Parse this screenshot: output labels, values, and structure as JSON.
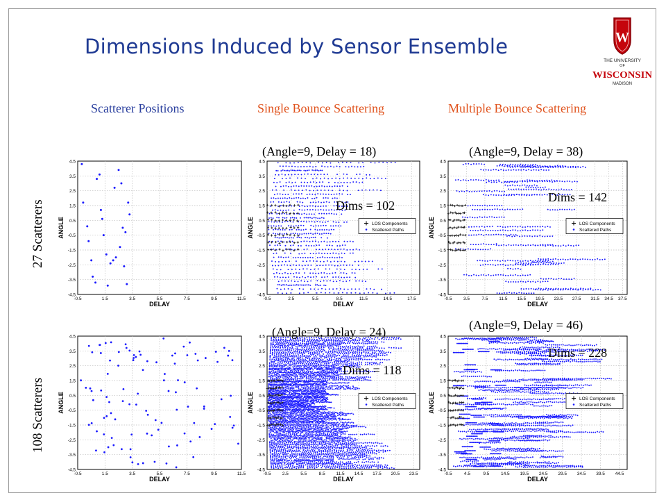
{
  "title": "Dimensions Induced by Sensor Ensemble",
  "logo": {
    "line1": "THE UNIVERSITY",
    "line2": "OF",
    "line3": "WISCONSIN",
    "line4": "MADISON",
    "crest_letter": "W"
  },
  "colors": {
    "title": "#1f3a93",
    "scatterer_header": "#2a3f9e",
    "bounce_header": "#e0521c",
    "points": "#1a1aff",
    "los": "#222222",
    "crest": "#c5050c"
  },
  "columns": {
    "scatterer": "Scatterer Positions",
    "single": "Single Bounce Scattering",
    "multiple": "Multiple Bounce Scattering"
  },
  "rows": {
    "small": "27 Scatterers",
    "large": "108 Scatterers"
  },
  "annotations": {
    "p1": {
      "params": "(Angle=9, Delay = 18)",
      "dims": "Dims = 102"
    },
    "p2": {
      "params": "(Angle=9, Delay = 38)",
      "dims": "Dims = 142"
    },
    "p3": {
      "params": "(Angle=9, Delay = 24)",
      "dims": "Dims = 118"
    },
    "p4": {
      "params": "(Angle=9, Delay = 46)",
      "dims": "Dims = 228"
    }
  },
  "legend": {
    "los": "LOS Components",
    "scattered": "Scattered Paths"
  },
  "chart_data": [
    {
      "id": "scat27",
      "type": "scatter",
      "xlabel": "DELAY",
      "ylabel": "ANGLE",
      "xlim": [
        -0.5,
        11.5
      ],
      "ylim": [
        -4.5,
        4.5
      ],
      "xticks": [
        "-0.5",
        "1.5",
        "3.5",
        "5.5",
        "7.5",
        "9.5",
        "11.5"
      ],
      "yticks": [
        "4.5",
        "3.5",
        "2.5",
        "1.5",
        "0.5",
        "-0.5",
        "-1.5",
        "-2.5",
        "-3.5",
        "-4.5"
      ],
      "grid": true,
      "series": [
        {
          "points": [
            [
              -0.2,
              4.3
            ],
            [
              -0.1,
              1.7
            ],
            [
              0.2,
              0.1
            ],
            [
              0.3,
              -0.9
            ],
            [
              0.5,
              -2.2
            ],
            [
              0.6,
              -3.3
            ],
            [
              0.8,
              -3.7
            ],
            [
              0.9,
              3.3
            ],
            [
              1.1,
              3.6
            ],
            [
              1.2,
              1.2
            ],
            [
              1.3,
              0.6
            ],
            [
              1.4,
              -0.5
            ],
            [
              1.6,
              -1.8
            ],
            [
              1.7,
              -3.9
            ],
            [
              1.9,
              -2.4
            ],
            [
              2.1,
              -2.2
            ],
            [
              2.2,
              2.7
            ],
            [
              2.3,
              -2.0
            ],
            [
              2.5,
              3.9
            ],
            [
              2.6,
              -1.3
            ],
            [
              2.7,
              3.0
            ],
            [
              2.8,
              0.0
            ],
            [
              2.9,
              -2.6
            ],
            [
              3.0,
              -0.3
            ],
            [
              3.1,
              -3.8
            ],
            [
              3.2,
              1.7
            ],
            [
              3.3,
              0.9
            ]
          ]
        }
      ]
    },
    {
      "id": "single27",
      "type": "scatter",
      "xlabel": "DELAY",
      "ylabel": "ANGLE",
      "xlim": [
        -0.5,
        18.5
      ],
      "ylim": [
        -4.5,
        4.5
      ],
      "xticks": [
        "-0.5",
        "2.5",
        "5.5",
        "8.5",
        "11.5",
        "14.5",
        "17.5"
      ],
      "yticks": [
        "4.5",
        "3.5",
        "2.5",
        "1.5",
        "0.5",
        "-0.5",
        "-1.5",
        "-2.5",
        "-3.5",
        "-4.5"
      ],
      "grid": true,
      "legend_position": "right",
      "series": [
        {
          "name": "LOS Components",
          "style": "cross",
          "region": {
            "x": [
              -0.5,
              3.7
            ],
            "y": [
              -1.5,
              1.5
            ]
          }
        },
        {
          "name": "Scattered Paths",
          "style": "dot",
          "shape": "left-bulge",
          "xmax": 18.0
        }
      ]
    },
    {
      "id": "multi27",
      "type": "scatter",
      "xlabel": "DELAY",
      "ylabel": "ANGLE",
      "xlim": [
        -0.5,
        38.5
      ],
      "ylim": [
        -4.5,
        4.5
      ],
      "xticks": [
        "-0.5",
        "3.5",
        "7.5",
        "11.5",
        "15.5",
        "19.5",
        "23.5",
        "27.5",
        "31.5",
        "34.5",
        "37.5"
      ],
      "yticks": [
        "4.5",
        "3.5",
        "2.5",
        "1.5",
        "0.5",
        "-0.5",
        "-1.5",
        "-2.5",
        "-3.5",
        "-4.5"
      ],
      "grid": true,
      "legend_position": "right",
      "series": [
        {
          "name": "LOS Components",
          "style": "cross",
          "region": {
            "x": [
              -0.5,
              3.5
            ],
            "y": [
              -1.5,
              1.5
            ]
          }
        },
        {
          "name": "Scattered Paths",
          "style": "dot",
          "shape": "bands",
          "xmax": 38.0
        }
      ]
    },
    {
      "id": "scat108",
      "type": "scatter",
      "xlabel": "DELAY",
      "ylabel": "ANGLE",
      "xlim": [
        -0.5,
        11.5
      ],
      "ylim": [
        -4.5,
        4.5
      ],
      "xticks": [
        "-0.5",
        "1.5",
        "3.5",
        "5.5",
        "7.5",
        "9.5",
        "11.5"
      ],
      "yticks": [
        "4.5",
        "3.5",
        "2.5",
        "1.5",
        "0.5",
        "-0.5",
        "-1.5",
        "-2.5",
        "-3.5",
        "-4.5"
      ],
      "grid": true,
      "series": [
        {
          "points": "uniform-108"
        }
      ]
    },
    {
      "id": "single108",
      "type": "scatter",
      "xlabel": "DELAY",
      "ylabel": "ANGLE",
      "xlim": [
        -0.5,
        24.5
      ],
      "ylim": [
        -4.5,
        4.5
      ],
      "xticks": [
        "-0.5",
        "2.5",
        "5.5",
        "8.5",
        "11.5",
        "14.5",
        "17.5",
        "20.5",
        "23.5"
      ],
      "yticks": [
        "4.5",
        "3.5",
        "2.5",
        "1.5",
        "0.5",
        "-0.5",
        "-1.5",
        "-2.5",
        "-3.5",
        "-4.5"
      ],
      "grid": true,
      "legend_position": "right",
      "series": [
        {
          "name": "LOS Components",
          "style": "cross",
          "region": {
            "x": [
              -0.5,
              2.2
            ],
            "y": [
              -1.5,
              1.5
            ]
          }
        },
        {
          "name": "Scattered Paths",
          "style": "dot",
          "shape": "left-bulge-dense",
          "xmax": 24.0
        }
      ]
    },
    {
      "id": "multi108",
      "type": "scatter",
      "xlabel": "DELAY",
      "ylabel": "ANGLE",
      "xlim": [
        -0.5,
        46.5
      ],
      "ylim": [
        -4.5,
        4.5
      ],
      "xticks": [
        "-0.5",
        "4.5",
        "9.5",
        "14.5",
        "19.5",
        "24.5",
        "29.5",
        "34.5",
        "39.5",
        "44.5"
      ],
      "yticks": [
        "4.5",
        "3.5",
        "2.5",
        "1.5",
        "0.5",
        "-0.5",
        "-1.5",
        "-2.5",
        "-3.5",
        "-4.5"
      ],
      "grid": true,
      "legend_position": "right",
      "series": [
        {
          "name": "LOS Components",
          "style": "cross",
          "region": {
            "x": [
              -0.5,
              3.8
            ],
            "y": [
              -1.5,
              1.5
            ]
          }
        },
        {
          "name": "Scattered Paths",
          "style": "dot",
          "shape": "bands-dense",
          "xmax": 46.0
        }
      ]
    }
  ]
}
